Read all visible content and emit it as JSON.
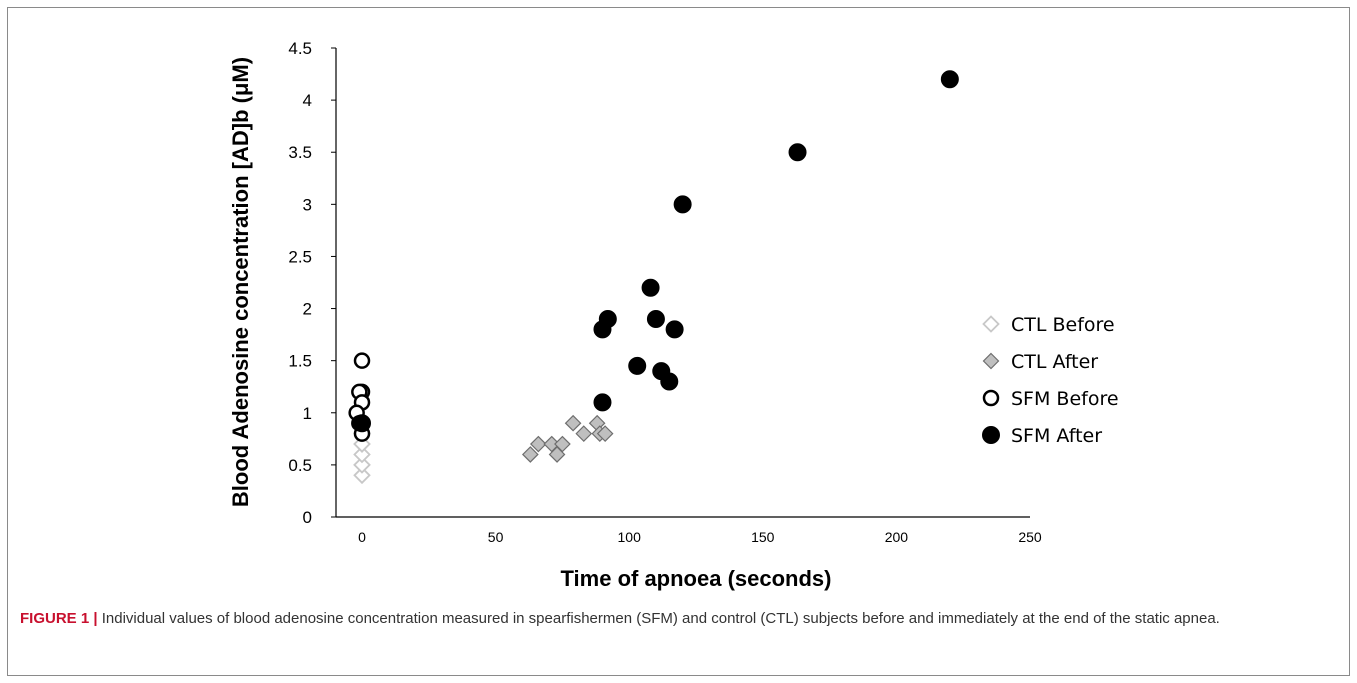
{
  "chart_data": {
    "type": "scatter",
    "title": "",
    "xlabel": "Time of apnoea (seconds)",
    "ylabel": "Blood Adenosine concentration [AD]b (μM)",
    "xlim": [
      0,
      250
    ],
    "ylim": [
      0,
      4.5
    ],
    "xticks": [
      0,
      50,
      100,
      150,
      200,
      250
    ],
    "yticks": [
      0,
      0.5,
      1,
      1.5,
      2,
      2.5,
      3,
      3.5,
      4,
      4.5
    ],
    "xtick_labels": [
      "0",
      "50",
      "100",
      "150",
      "200",
      "250"
    ],
    "ytick_labels": [
      "0",
      "0.5",
      "1",
      "1.5",
      "2",
      "2.5",
      "3",
      "3.5",
      "4",
      "4.5"
    ],
    "grid": false,
    "legend_position": "right",
    "series": [
      {
        "name": "CTL Before",
        "marker": "diamond-open",
        "color": "#c8c8c8",
        "points": [
          [
            0,
            0.4
          ],
          [
            0,
            0.5
          ],
          [
            0,
            0.5
          ],
          [
            0,
            0.6
          ],
          [
            0,
            0.7
          ],
          [
            0,
            0.7
          ],
          [
            0,
            0.8
          ]
        ]
      },
      {
        "name": "CTL After",
        "marker": "diamond-filled",
        "color": "#bfbfbf",
        "points": [
          [
            63,
            0.6
          ],
          [
            66,
            0.7
          ],
          [
            71,
            0.7
          ],
          [
            73,
            0.6
          ],
          [
            75,
            0.7
          ],
          [
            79,
            0.9
          ],
          [
            83,
            0.8
          ],
          [
            88,
            0.9
          ],
          [
            89,
            0.8
          ],
          [
            91,
            0.8
          ]
        ]
      },
      {
        "name": "SFM Before",
        "marker": "circle-open",
        "color": "#000000",
        "points": [
          [
            0,
            1.5
          ],
          [
            0,
            1.2
          ],
          [
            -1,
            1.2
          ],
          [
            0,
            1.1
          ],
          [
            -2,
            1.0
          ],
          [
            0,
            0.8
          ],
          [
            -1,
            0.9
          ]
        ]
      },
      {
        "name": "SFM After",
        "marker": "circle-filled",
        "color": "#000000",
        "points": [
          [
            0,
            0.9
          ],
          [
            90,
            1.1
          ],
          [
            90,
            1.8
          ],
          [
            92,
            1.9
          ],
          [
            103,
            1.45
          ],
          [
            108,
            2.2
          ],
          [
            110,
            1.9
          ],
          [
            112,
            1.4
          ],
          [
            115,
            1.3
          ],
          [
            117,
            1.8
          ],
          [
            120,
            3.0
          ],
          [
            163,
            3.5
          ],
          [
            220,
            4.2
          ]
        ]
      }
    ]
  },
  "caption": {
    "label": "FIGURE 1 |",
    "text": "Individual values of blood adenosine concentration measured in spearfishermen (SFM) and control (CTL) subjects before and immediately at the end of the static apnea."
  }
}
